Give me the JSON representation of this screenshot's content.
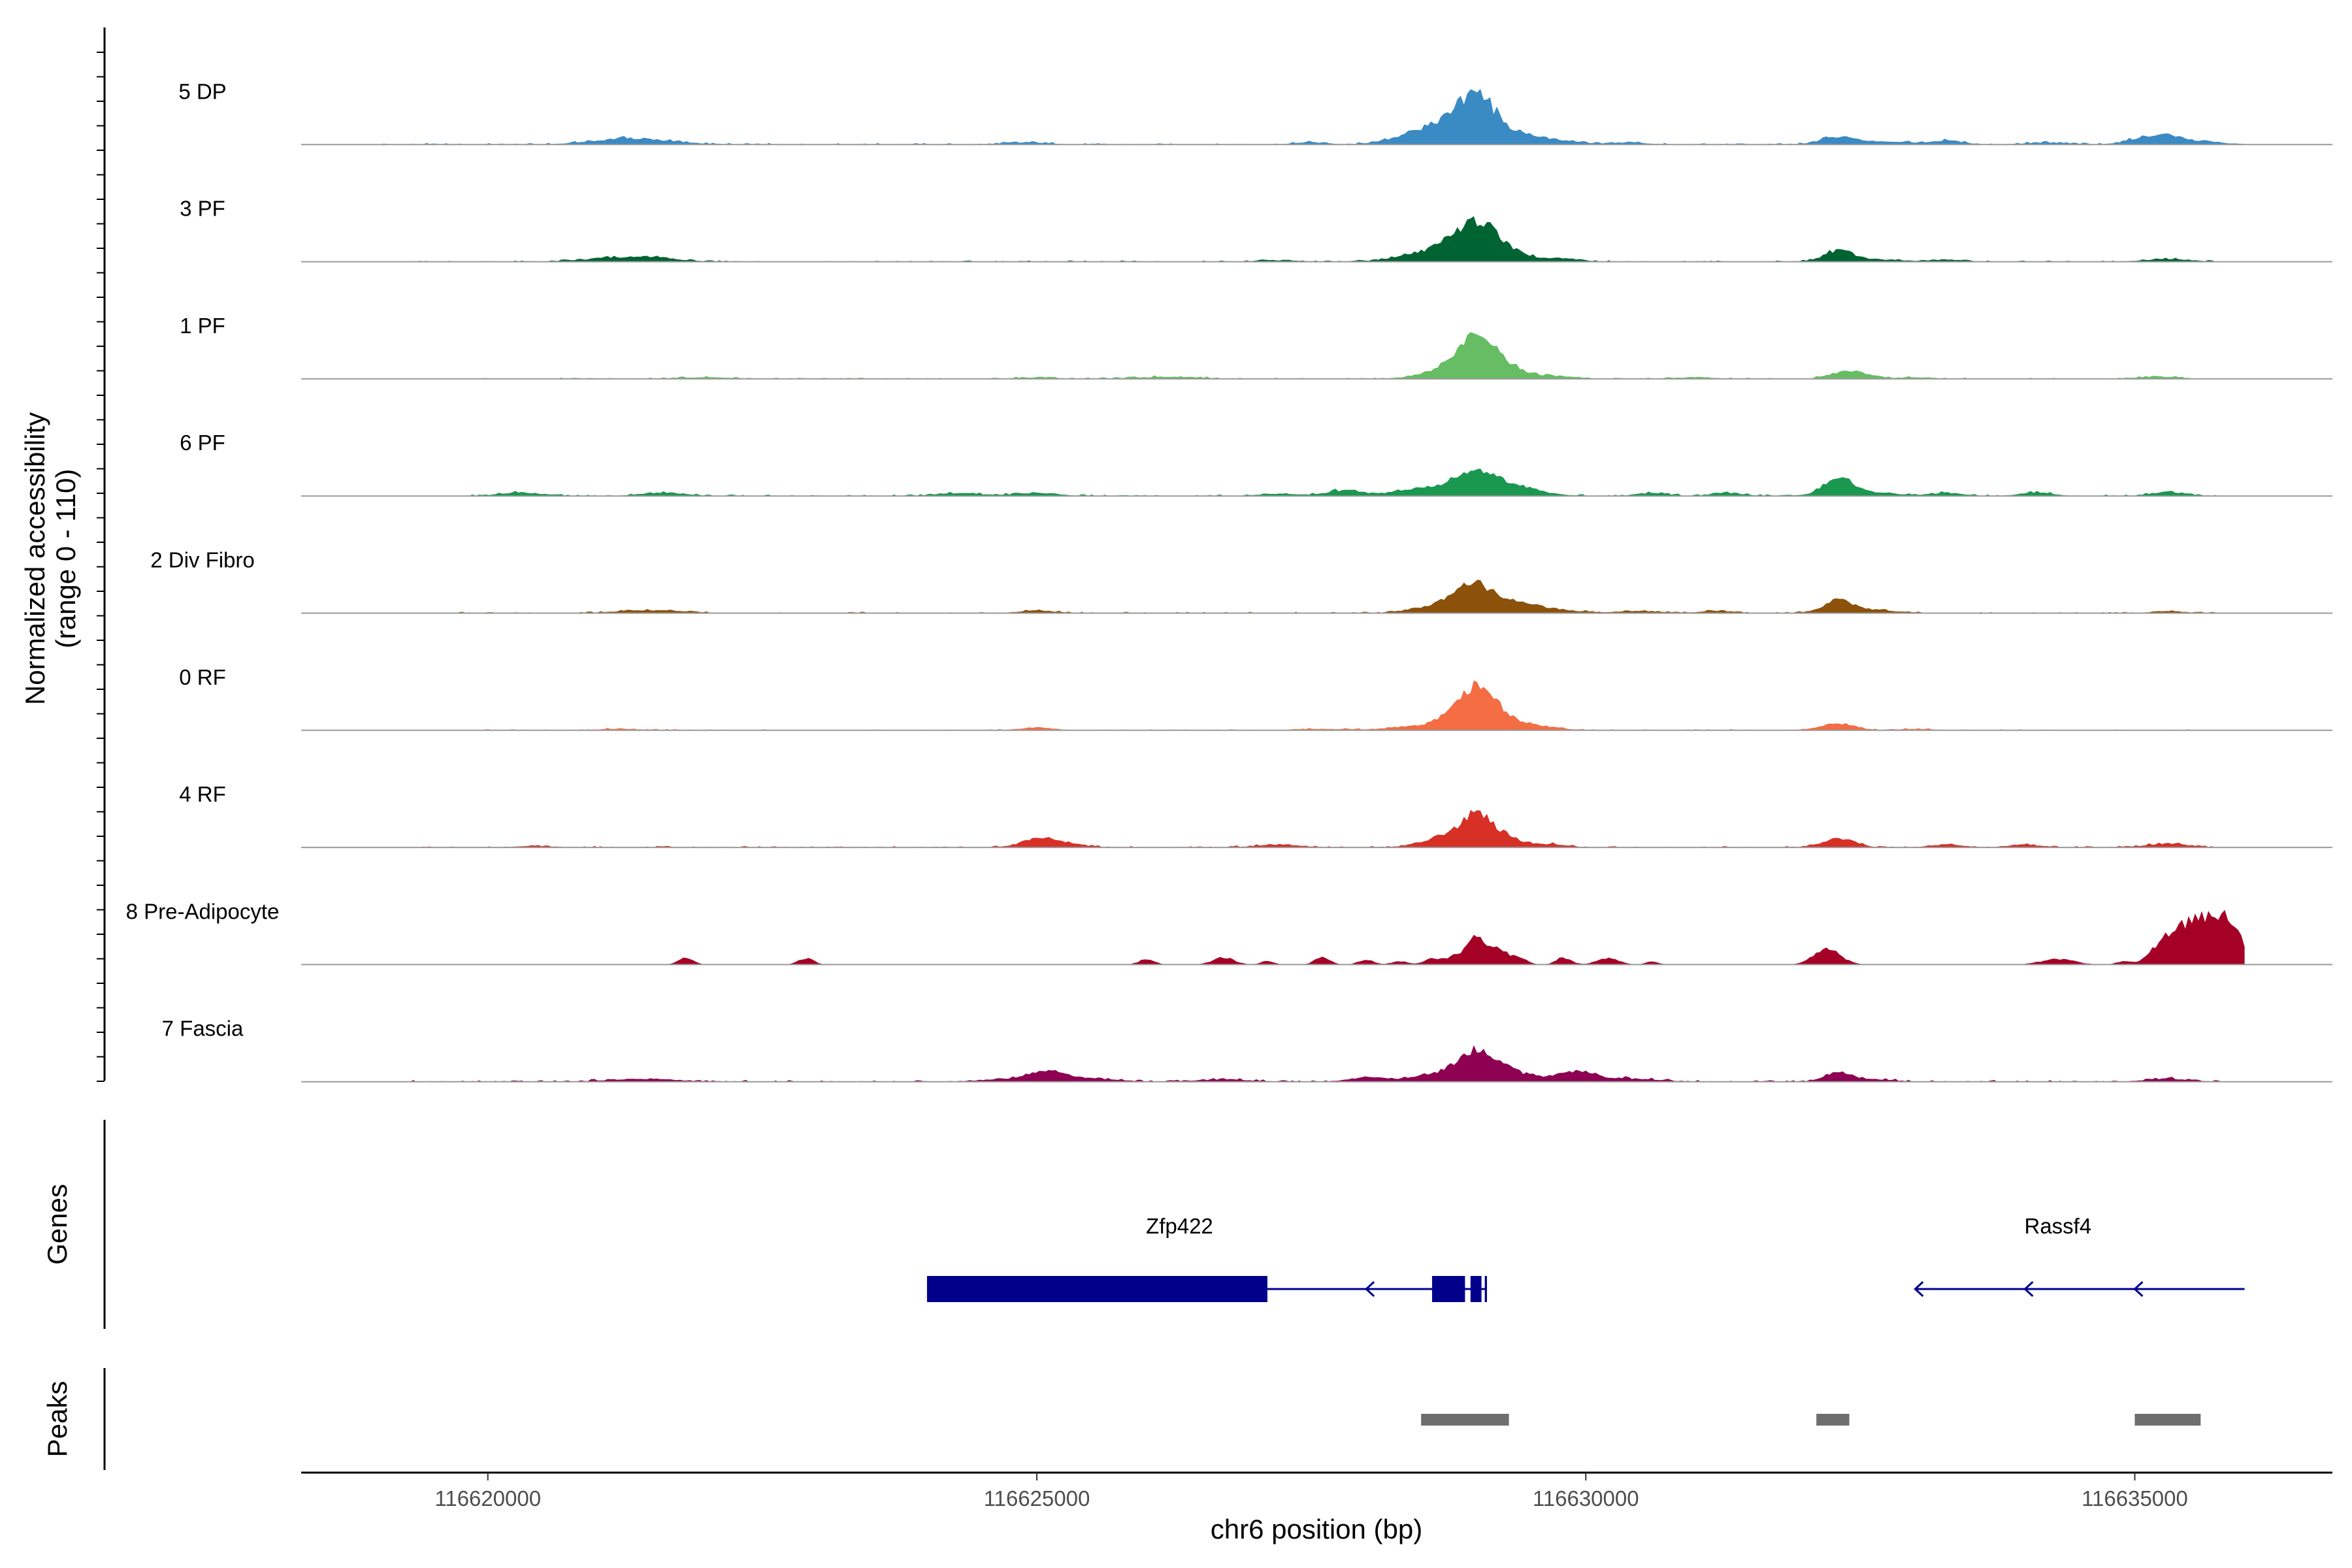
{
  "chart_data": {
    "type": "area",
    "title": "",
    "chromosome": "chr6",
    "xlabel": "chr6 position (bp)",
    "ylabel_line1": "Normalized accessibility",
    "ylabel_line2": "(range 0 - 110)",
    "xlim": [
      116618300,
      116636800
    ],
    "ylim": [
      0,
      110
    ],
    "x_ticks": [
      116620000,
      116625000,
      116630000,
      116635000
    ],
    "x_tick_labels": [
      "116620000",
      "116625000",
      "116630000",
      "116635000"
    ],
    "peaks_label": "Peaks",
    "genes_label": "Genes",
    "data_start": 116618900,
    "data_end": 116636000,
    "series": [
      {
        "name": "5 DP",
        "color": "#3a8ac4",
        "noise": 2.2,
        "noise_start": 116619000,
        "noise_end": 116635800,
        "bumps": [
          [
            116621200,
            300,
            6
          ],
          [
            116621500,
            300,
            4
          ],
          [
            116624900,
            200,
            3
          ],
          [
            116627500,
            150,
            3
          ],
          [
            116628700,
            300,
            28
          ],
          [
            116629000,
            160,
            45
          ],
          [
            116629200,
            300,
            14
          ],
          [
            116629600,
            300,
            5
          ],
          [
            116630400,
            150,
            3
          ],
          [
            116632300,
            150,
            10
          ],
          [
            116632700,
            300,
            4
          ],
          [
            116633300,
            150,
            5
          ],
          [
            116634200,
            200,
            3
          ],
          [
            116635200,
            200,
            12
          ],
          [
            116635500,
            300,
            4
          ]
        ]
      },
      {
        "name": "3 PF",
        "color": "#006432",
        "noise": 1.8,
        "noise_start": 116619300,
        "noise_end": 116635700,
        "bumps": [
          [
            116621200,
            300,
            6
          ],
          [
            116621600,
            200,
            3
          ],
          [
            116627200,
            200,
            2
          ],
          [
            116628700,
            300,
            18
          ],
          [
            116629000,
            180,
            38
          ],
          [
            116629200,
            250,
            14
          ],
          [
            116629800,
            150,
            4
          ],
          [
            116632300,
            120,
            13
          ],
          [
            116632500,
            300,
            4
          ],
          [
            116633300,
            150,
            3
          ],
          [
            116635300,
            200,
            4
          ]
        ]
      },
      {
        "name": "1 PF",
        "color": "#66bd63",
        "noise": 1.8,
        "noise_start": 116619700,
        "noise_end": 116635500,
        "bumps": [
          [
            116622000,
            300,
            2
          ],
          [
            116625000,
            200,
            2
          ],
          [
            116626200,
            300,
            3
          ],
          [
            116628700,
            200,
            10
          ],
          [
            116629000,
            170,
            46
          ],
          [
            116629200,
            250,
            16
          ],
          [
            116629800,
            150,
            3
          ],
          [
            116631000,
            200,
            2
          ],
          [
            116632400,
            150,
            12
          ],
          [
            116633000,
            200,
            2
          ],
          [
            116635200,
            200,
            3
          ]
        ]
      },
      {
        "name": "6 PF",
        "color": "#1a9850",
        "noise": 2.2,
        "noise_start": 116619700,
        "noise_end": 116635800,
        "bumps": [
          [
            116620300,
            200,
            5
          ],
          [
            116621600,
            200,
            5
          ],
          [
            116624300,
            200,
            4
          ],
          [
            116625000,
            200,
            4
          ],
          [
            116627200,
            200,
            3
          ],
          [
            116627800,
            150,
            8
          ],
          [
            116628600,
            300,
            12
          ],
          [
            116629000,
            160,
            28
          ],
          [
            116629300,
            250,
            15
          ],
          [
            116630600,
            150,
            4
          ],
          [
            116631300,
            150,
            4
          ],
          [
            116632300,
            120,
            22
          ],
          [
            116632500,
            300,
            6
          ],
          [
            116633300,
            150,
            4
          ],
          [
            116634100,
            150,
            5
          ],
          [
            116635300,
            150,
            6
          ]
        ]
      },
      {
        "name": "2 Div Fibro",
        "color": "#8c510a",
        "noise": 1.8,
        "noise_start": 116619700,
        "noise_end": 116635800,
        "bumps": [
          [
            116621300,
            200,
            3
          ],
          [
            116621700,
            200,
            3
          ],
          [
            116625000,
            150,
            4
          ],
          [
            116628700,
            250,
            12
          ],
          [
            116629000,
            170,
            30
          ],
          [
            116629300,
            250,
            12
          ],
          [
            116629700,
            250,
            4
          ],
          [
            116630500,
            200,
            3
          ],
          [
            116631200,
            150,
            3
          ],
          [
            116632300,
            120,
            15
          ],
          [
            116632500,
            300,
            5
          ],
          [
            116635300,
            150,
            3
          ]
        ]
      },
      {
        "name": "0 RF",
        "color": "#f46d43",
        "noise": 1.6,
        "noise_start": 116619900,
        "noise_end": 116635600,
        "bumps": [
          [
            116621200,
            200,
            2
          ],
          [
            116625000,
            150,
            4
          ],
          [
            116627600,
            200,
            2
          ],
          [
            116628400,
            250,
            4
          ],
          [
            116628800,
            200,
            14
          ],
          [
            116629000,
            150,
            46
          ],
          [
            116629200,
            200,
            18
          ],
          [
            116629600,
            200,
            4
          ],
          [
            116632300,
            150,
            10
          ],
          [
            116633000,
            150,
            2
          ]
        ]
      },
      {
        "name": "4 RF",
        "color": "#d73027",
        "noise": 2.0,
        "noise_start": 116619400,
        "noise_end": 116635700,
        "bumps": [
          [
            116620400,
            150,
            2
          ],
          [
            116625000,
            150,
            10
          ],
          [
            116625200,
            200,
            6
          ],
          [
            116627200,
            200,
            4
          ],
          [
            116628700,
            200,
            14
          ],
          [
            116629000,
            150,
            34
          ],
          [
            116629200,
            200,
            14
          ],
          [
            116629700,
            150,
            4
          ],
          [
            116632300,
            150,
            12
          ],
          [
            116633300,
            150,
            4
          ],
          [
            116634000,
            150,
            4
          ],
          [
            116635300,
            200,
            5
          ]
        ]
      },
      {
        "name": "8 Pre-Adipocyte",
        "color": "#a50026",
        "noise": 0,
        "noise_start": 116619000,
        "noise_end": 116636000,
        "bumps": [
          [
            116621800,
            70,
            9
          ],
          [
            116622900,
            70,
            9
          ],
          [
            116626000,
            70,
            8
          ],
          [
            116626700,
            100,
            10
          ],
          [
            116627100,
            60,
            5
          ],
          [
            116627600,
            70,
            10
          ],
          [
            116628000,
            70,
            7
          ],
          [
            116628300,
            70,
            5
          ],
          [
            116628600,
            80,
            8
          ],
          [
            116628800,
            80,
            10
          ],
          [
            116629000,
            90,
            36
          ],
          [
            116629200,
            90,
            22
          ],
          [
            116629400,
            70,
            8
          ],
          [
            116629800,
            70,
            10
          ],
          [
            116630200,
            100,
            9
          ],
          [
            116630600,
            60,
            4
          ],
          [
            116632200,
            120,
            22
          ],
          [
            116634300,
            150,
            8
          ],
          [
            116634900,
            60,
            5
          ],
          [
            116635200,
            100,
            10
          ],
          [
            116635400,
            150,
            45
          ],
          [
            116635700,
            150,
            60
          ],
          [
            116635900,
            120,
            30
          ]
        ]
      },
      {
        "name": "7 Fascia",
        "color": "#8e0152",
        "noise": 2.2,
        "noise_start": 116619300,
        "noise_end": 116635800,
        "bumps": [
          [
            116621400,
            300,
            4
          ],
          [
            116624700,
            200,
            4
          ],
          [
            116625100,
            150,
            16
          ],
          [
            116625500,
            250,
            4
          ],
          [
            116626700,
            250,
            3
          ],
          [
            116628000,
            150,
            6
          ],
          [
            116628600,
            250,
            8
          ],
          [
            116629000,
            180,
            36
          ],
          [
            116629300,
            250,
            12
          ],
          [
            116629900,
            150,
            12
          ],
          [
            116630300,
            300,
            5
          ],
          [
            116632300,
            120,
            13
          ],
          [
            116632600,
            200,
            3
          ],
          [
            116635300,
            200,
            4
          ]
        ]
      }
    ],
    "genes": [
      {
        "name": "Zfp422",
        "strand": "-",
        "start": 116624000,
        "end": 116629100,
        "label_pos": 116626300,
        "exons": [
          [
            116624000,
            116627100
          ],
          [
            116628600,
            116628900
          ],
          [
            116628950,
            116629050
          ],
          [
            116629080,
            116629100
          ]
        ],
        "arrows": [
          116628000
        ]
      },
      {
        "name": "Rassf4",
        "strand": "-",
        "start": 116633000,
        "end": 116636000,
        "label_pos": 116634300,
        "exons": [],
        "arrows": [
          116633000,
          116634000,
          116635000
        ]
      }
    ],
    "peaks": [
      [
        116628500,
        116629300
      ],
      [
        116632100,
        116632400
      ],
      [
        116635000,
        116635600
      ]
    ]
  }
}
